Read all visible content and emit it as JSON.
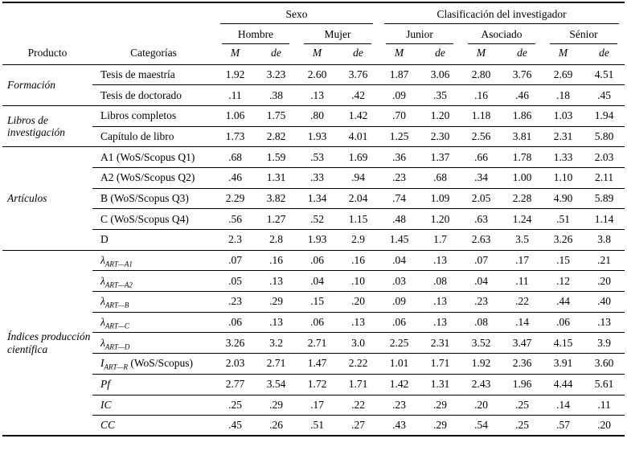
{
  "table": {
    "header": {
      "group_sexo": "Sexo",
      "group_clasificacion": "Clasificación del investigador",
      "subgroups": [
        "Hombre",
        "Mujer",
        "Junior",
        "Asociado",
        "Sénior"
      ],
      "col_producto": "Producto",
      "col_categorias": "Categorías",
      "stat_m": "M",
      "stat_de": "de"
    },
    "groups": [
      {
        "producto": "Formación",
        "rows": [
          {
            "category": {
              "text": "Tesis de maestría"
            },
            "values": [
              "1.92",
              "3.23",
              "2.60",
              "3.76",
              "1.87",
              "3.06",
              "2.80",
              "3.76",
              "2.69",
              "4.51"
            ]
          },
          {
            "category": {
              "text": "Tesis de doctorado"
            },
            "values": [
              ".11",
              ".38",
              ".13",
              ".42",
              ".09",
              ".35",
              ".16",
              ".46",
              ".18",
              ".45"
            ]
          }
        ]
      },
      {
        "producto": "Libros de investigación",
        "rows": [
          {
            "category": {
              "text": "Libros completos"
            },
            "values": [
              "1.06",
              "1.75",
              ".80",
              "1.42",
              ".70",
              "1.20",
              "1.18",
              "1.86",
              "1.03",
              "1.94"
            ]
          },
          {
            "category": {
              "text": "Capítulo de libro"
            },
            "values": [
              "1.73",
              "2.82",
              "1.93",
              "4.01",
              "1.25",
              "2.30",
              "2.56",
              "3.81",
              "2.31",
              "5.80"
            ]
          }
        ]
      },
      {
        "producto": "Artículos",
        "rows": [
          {
            "category": {
              "text": "A1 (WoS/Scopus Q1)"
            },
            "values": [
              ".68",
              "1.59",
              ".53",
              "1.69",
              ".36",
              "1.37",
              ".66",
              "1.78",
              "1.33",
              "2.03"
            ]
          },
          {
            "category": {
              "text": "A2 (WoS/Scopus Q2)"
            },
            "values": [
              ".46",
              "1.31",
              ".33",
              ".94",
              ".23",
              ".68",
              ".34",
              "1.00",
              "1.10",
              "2.11"
            ]
          },
          {
            "category": {
              "text": "B (WoS/Scopus Q3)"
            },
            "values": [
              "2.29",
              "3.82",
              "1.34",
              "2.04",
              ".74",
              "1.09",
              "2.05",
              "2.28",
              "4.90",
              "5.89"
            ]
          },
          {
            "category": {
              "text": "C (WoS/Scopus Q4)"
            },
            "values": [
              ".56",
              "1.27",
              ".52",
              "1.15",
              ".48",
              "1.20",
              ".63",
              "1.24",
              ".51",
              "1.14"
            ]
          },
          {
            "category": {
              "text": "D"
            },
            "values": [
              "2.3",
              "2.8",
              "1.93",
              "2.9",
              "1.45",
              "1.7",
              "2.63",
              "3.5",
              "3.26",
              "3.8"
            ]
          }
        ]
      },
      {
        "producto": "Índices producción científica",
        "rows": [
          {
            "category": {
              "main": "λ",
              "sub": "ART—A1",
              "italic": true
            },
            "values": [
              ".07",
              ".16",
              ".06",
              ".16",
              ".04",
              ".13",
              ".07",
              ".17",
              ".15",
              ".21"
            ]
          },
          {
            "category": {
              "main": "λ",
              "sub": "ART—A2",
              "italic": true
            },
            "values": [
              ".05",
              ".13",
              ".04",
              ".10",
              ".03",
              ".08",
              ".04",
              ".11",
              ".12",
              ".20"
            ]
          },
          {
            "category": {
              "main": "λ",
              "sub": "ART—B",
              "italic": true
            },
            "values": [
              ".23",
              ".29",
              ".15",
              ".20",
              ".09",
              ".13",
              ".23",
              ".22",
              ".44",
              ".40"
            ]
          },
          {
            "category": {
              "main": "λ",
              "sub": "ART—C",
              "italic": true
            },
            "values": [
              ".06",
              ".13",
              ".06",
              ".13",
              ".06",
              ".13",
              ".08",
              ".14",
              ".06",
              ".13"
            ]
          },
          {
            "category": {
              "main": "λ",
              "sub": "ART—D",
              "italic": true
            },
            "values": [
              "3.26",
              "3.2",
              "2.71",
              "3.0",
              "2.25",
              "2.31",
              "3.52",
              "3.47",
              "4.15",
              "3.9"
            ]
          },
          {
            "category": {
              "main": "I",
              "sub": "ART—R",
              "suffix": " (WoS/Scopus)",
              "italic": true
            },
            "values": [
              "2.03",
              "2.71",
              "1.47",
              "2.22",
              "1.01",
              "1.71",
              "1.92",
              "2.36",
              "3.91",
              "3.60"
            ]
          },
          {
            "category": {
              "text": "Pf",
              "italic": true
            },
            "values": [
              "2.77",
              "3.54",
              "1.72",
              "1.71",
              "1.42",
              "1.31",
              "2.43",
              "1.96",
              "4.44",
              "5.61"
            ]
          },
          {
            "category": {
              "text": "IC",
              "italic": true
            },
            "values": [
              ".25",
              ".29",
              ".17",
              ".22",
              ".23",
              ".29",
              ".20",
              ".25",
              ".14",
              ".11"
            ]
          },
          {
            "category": {
              "text": "CC",
              "italic": true
            },
            "values": [
              ".45",
              ".26",
              ".51",
              ".27",
              ".43",
              ".29",
              ".54",
              ".25",
              ".57",
              ".20"
            ]
          }
        ]
      }
    ]
  }
}
